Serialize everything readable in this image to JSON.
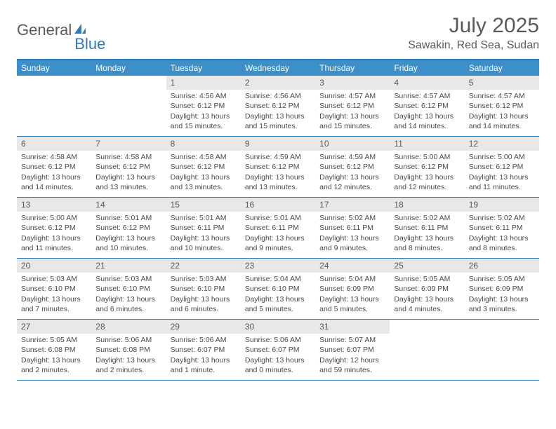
{
  "logo": {
    "part1": "General",
    "part2": "Blue"
  },
  "title": "July 2025",
  "location": "Sawakin, Red Sea, Sudan",
  "colors": {
    "header_bar": "#3d8fc9",
    "border": "#2b7bbf",
    "daynum_bg": "#e8e8e8",
    "text": "#5a5a5a"
  },
  "day_headers": [
    "Sunday",
    "Monday",
    "Tuesday",
    "Wednesday",
    "Thursday",
    "Friday",
    "Saturday"
  ],
  "weeks": [
    [
      null,
      null,
      {
        "n": "1",
        "sr": "Sunrise: 4:56 AM",
        "ss": "Sunset: 6:12 PM",
        "d1": "Daylight: 13 hours",
        "d2": "and 15 minutes."
      },
      {
        "n": "2",
        "sr": "Sunrise: 4:56 AM",
        "ss": "Sunset: 6:12 PM",
        "d1": "Daylight: 13 hours",
        "d2": "and 15 minutes."
      },
      {
        "n": "3",
        "sr": "Sunrise: 4:57 AM",
        "ss": "Sunset: 6:12 PM",
        "d1": "Daylight: 13 hours",
        "d2": "and 15 minutes."
      },
      {
        "n": "4",
        "sr": "Sunrise: 4:57 AM",
        "ss": "Sunset: 6:12 PM",
        "d1": "Daylight: 13 hours",
        "d2": "and 14 minutes."
      },
      {
        "n": "5",
        "sr": "Sunrise: 4:57 AM",
        "ss": "Sunset: 6:12 PM",
        "d1": "Daylight: 13 hours",
        "d2": "and 14 minutes."
      }
    ],
    [
      {
        "n": "6",
        "sr": "Sunrise: 4:58 AM",
        "ss": "Sunset: 6:12 PM",
        "d1": "Daylight: 13 hours",
        "d2": "and 14 minutes."
      },
      {
        "n": "7",
        "sr": "Sunrise: 4:58 AM",
        "ss": "Sunset: 6:12 PM",
        "d1": "Daylight: 13 hours",
        "d2": "and 13 minutes."
      },
      {
        "n": "8",
        "sr": "Sunrise: 4:58 AM",
        "ss": "Sunset: 6:12 PM",
        "d1": "Daylight: 13 hours",
        "d2": "and 13 minutes."
      },
      {
        "n": "9",
        "sr": "Sunrise: 4:59 AM",
        "ss": "Sunset: 6:12 PM",
        "d1": "Daylight: 13 hours",
        "d2": "and 13 minutes."
      },
      {
        "n": "10",
        "sr": "Sunrise: 4:59 AM",
        "ss": "Sunset: 6:12 PM",
        "d1": "Daylight: 13 hours",
        "d2": "and 12 minutes."
      },
      {
        "n": "11",
        "sr": "Sunrise: 5:00 AM",
        "ss": "Sunset: 6:12 PM",
        "d1": "Daylight: 13 hours",
        "d2": "and 12 minutes."
      },
      {
        "n": "12",
        "sr": "Sunrise: 5:00 AM",
        "ss": "Sunset: 6:12 PM",
        "d1": "Daylight: 13 hours",
        "d2": "and 11 minutes."
      }
    ],
    [
      {
        "n": "13",
        "sr": "Sunrise: 5:00 AM",
        "ss": "Sunset: 6:12 PM",
        "d1": "Daylight: 13 hours",
        "d2": "and 11 minutes."
      },
      {
        "n": "14",
        "sr": "Sunrise: 5:01 AM",
        "ss": "Sunset: 6:12 PM",
        "d1": "Daylight: 13 hours",
        "d2": "and 10 minutes."
      },
      {
        "n": "15",
        "sr": "Sunrise: 5:01 AM",
        "ss": "Sunset: 6:11 PM",
        "d1": "Daylight: 13 hours",
        "d2": "and 10 minutes."
      },
      {
        "n": "16",
        "sr": "Sunrise: 5:01 AM",
        "ss": "Sunset: 6:11 PM",
        "d1": "Daylight: 13 hours",
        "d2": "and 9 minutes."
      },
      {
        "n": "17",
        "sr": "Sunrise: 5:02 AM",
        "ss": "Sunset: 6:11 PM",
        "d1": "Daylight: 13 hours",
        "d2": "and 9 minutes."
      },
      {
        "n": "18",
        "sr": "Sunrise: 5:02 AM",
        "ss": "Sunset: 6:11 PM",
        "d1": "Daylight: 13 hours",
        "d2": "and 8 minutes."
      },
      {
        "n": "19",
        "sr": "Sunrise: 5:02 AM",
        "ss": "Sunset: 6:11 PM",
        "d1": "Daylight: 13 hours",
        "d2": "and 8 minutes."
      }
    ],
    [
      {
        "n": "20",
        "sr": "Sunrise: 5:03 AM",
        "ss": "Sunset: 6:10 PM",
        "d1": "Daylight: 13 hours",
        "d2": "and 7 minutes."
      },
      {
        "n": "21",
        "sr": "Sunrise: 5:03 AM",
        "ss": "Sunset: 6:10 PM",
        "d1": "Daylight: 13 hours",
        "d2": "and 6 minutes."
      },
      {
        "n": "22",
        "sr": "Sunrise: 5:03 AM",
        "ss": "Sunset: 6:10 PM",
        "d1": "Daylight: 13 hours",
        "d2": "and 6 minutes."
      },
      {
        "n": "23",
        "sr": "Sunrise: 5:04 AM",
        "ss": "Sunset: 6:10 PM",
        "d1": "Daylight: 13 hours",
        "d2": "and 5 minutes."
      },
      {
        "n": "24",
        "sr": "Sunrise: 5:04 AM",
        "ss": "Sunset: 6:09 PM",
        "d1": "Daylight: 13 hours",
        "d2": "and 5 minutes."
      },
      {
        "n": "25",
        "sr": "Sunrise: 5:05 AM",
        "ss": "Sunset: 6:09 PM",
        "d1": "Daylight: 13 hours",
        "d2": "and 4 minutes."
      },
      {
        "n": "26",
        "sr": "Sunrise: 5:05 AM",
        "ss": "Sunset: 6:09 PM",
        "d1": "Daylight: 13 hours",
        "d2": "and 3 minutes."
      }
    ],
    [
      {
        "n": "27",
        "sr": "Sunrise: 5:05 AM",
        "ss": "Sunset: 6:08 PM",
        "d1": "Daylight: 13 hours",
        "d2": "and 2 minutes."
      },
      {
        "n": "28",
        "sr": "Sunrise: 5:06 AM",
        "ss": "Sunset: 6:08 PM",
        "d1": "Daylight: 13 hours",
        "d2": "and 2 minutes."
      },
      {
        "n": "29",
        "sr": "Sunrise: 5:06 AM",
        "ss": "Sunset: 6:07 PM",
        "d1": "Daylight: 13 hours",
        "d2": "and 1 minute."
      },
      {
        "n": "30",
        "sr": "Sunrise: 5:06 AM",
        "ss": "Sunset: 6:07 PM",
        "d1": "Daylight: 13 hours",
        "d2": "and 0 minutes."
      },
      {
        "n": "31",
        "sr": "Sunrise: 5:07 AM",
        "ss": "Sunset: 6:07 PM",
        "d1": "Daylight: 12 hours",
        "d2": "and 59 minutes."
      },
      null,
      null
    ]
  ]
}
